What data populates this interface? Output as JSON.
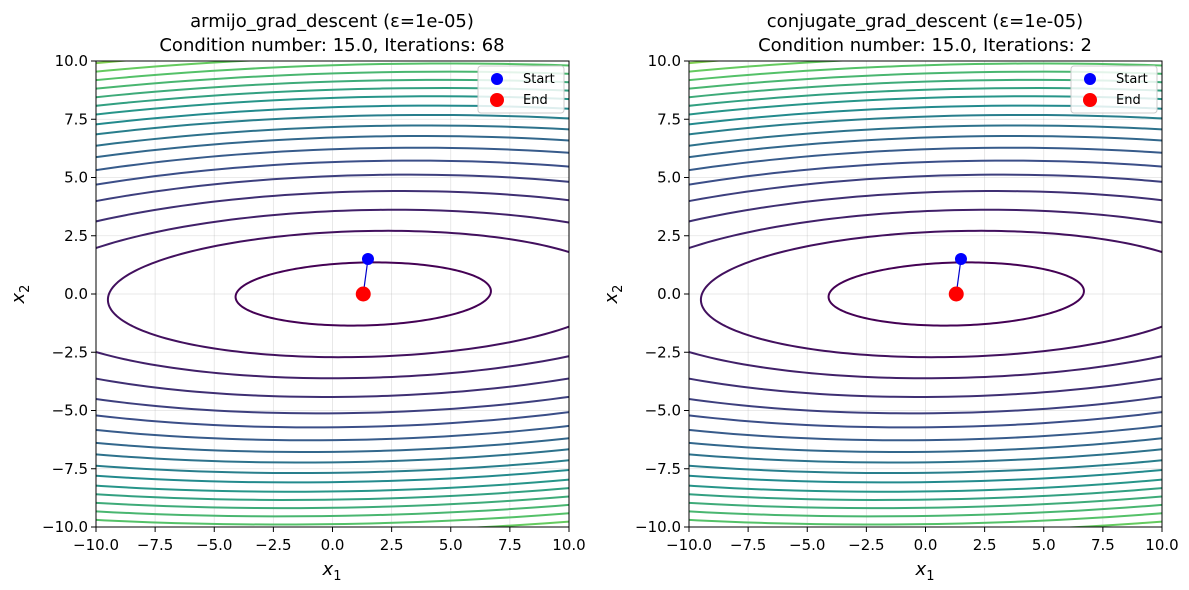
{
  "chart_data": [
    {
      "type": "contour",
      "title_line1": "armijo_grad_descent (ε=1e-05)",
      "title_line2": "Condition number: 15.0, Iterations: 68",
      "xlabel": "x",
      "xlabel_sub": "1",
      "ylabel": "x",
      "ylabel_sub": "2",
      "xlim": [
        -10,
        10
      ],
      "ylim": [
        -10,
        10
      ],
      "xticks": [
        "−10.0",
        "−7.5",
        "−5.0",
        "−2.5",
        "0.0",
        "2.5",
        "5.0",
        "7.5",
        "10.0"
      ],
      "yticks": [
        "−10.0",
        "−7.5",
        "−5.0",
        "−2.5",
        "0.0",
        "2.5",
        "5.0",
        "7.5",
        "10.0"
      ],
      "grid": true,
      "legend_position": "top-right",
      "legend": [
        {
          "label": "Start",
          "color": "#0000ff"
        },
        {
          "label": "End",
          "color": "#ff0000"
        }
      ],
      "path": {
        "color": "#0000cc",
        "points": [
          [
            1.5,
            1.5
          ],
          [
            1.3,
            0.0
          ]
        ]
      },
      "start": [
        1.5,
        1.5
      ],
      "end": [
        1.3,
        0.0
      ],
      "contours": {
        "center": [
          1.3,
          0.0
        ],
        "semi_axes_ratio": 4.0,
        "rotation_deg": 1.4,
        "semi_minor_levels": [
          1.35,
          2.7,
          3.6,
          4.4,
          5.1,
          5.7,
          6.25,
          6.75,
          7.2,
          7.65,
          8.05,
          8.45,
          8.8,
          9.15,
          9.5,
          9.85,
          10.2,
          10.55,
          10.9,
          11.25,
          11.6,
          11.95
        ],
        "colormap": [
          "#440154",
          "#3b528b",
          "#21908d",
          "#5dc962",
          "#fde725"
        ]
      }
    },
    {
      "type": "contour",
      "title_line1": "conjugate_grad_descent (ε=1e-05)",
      "title_line2": "Condition number: 15.0, Iterations: 2",
      "xlabel": "x",
      "xlabel_sub": "1",
      "ylabel": "x",
      "ylabel_sub": "2",
      "xlim": [
        -10,
        10
      ],
      "ylim": [
        -10,
        10
      ],
      "xticks": [
        "−10.0",
        "−7.5",
        "−5.0",
        "−2.5",
        "0.0",
        "2.5",
        "5.0",
        "7.5",
        "10.0"
      ],
      "yticks": [
        "−10.0",
        "−7.5",
        "−5.0",
        "−2.5",
        "0.0",
        "2.5",
        "5.0",
        "7.5",
        "10.0"
      ],
      "grid": true,
      "legend_position": "top-right",
      "legend": [
        {
          "label": "Start",
          "color": "#0000ff"
        },
        {
          "label": "End",
          "color": "#ff0000"
        }
      ],
      "path": {
        "color": "#0000cc",
        "points": [
          [
            1.5,
            1.5
          ],
          [
            1.3,
            0.0
          ]
        ]
      },
      "start": [
        1.5,
        1.5
      ],
      "end": [
        1.3,
        0.0
      ],
      "contours": {
        "center": [
          1.3,
          0.0
        ],
        "semi_axes_ratio": 4.0,
        "rotation_deg": 1.4,
        "semi_minor_levels": [
          1.35,
          2.7,
          3.6,
          4.4,
          5.1,
          5.7,
          6.25,
          6.75,
          7.2,
          7.65,
          8.05,
          8.45,
          8.8,
          9.15,
          9.5,
          9.85,
          10.2,
          10.55,
          10.9,
          11.25,
          11.6,
          11.95
        ],
        "colormap": [
          "#440154",
          "#3b528b",
          "#21908d",
          "#5dc962",
          "#fde725"
        ]
      }
    }
  ]
}
